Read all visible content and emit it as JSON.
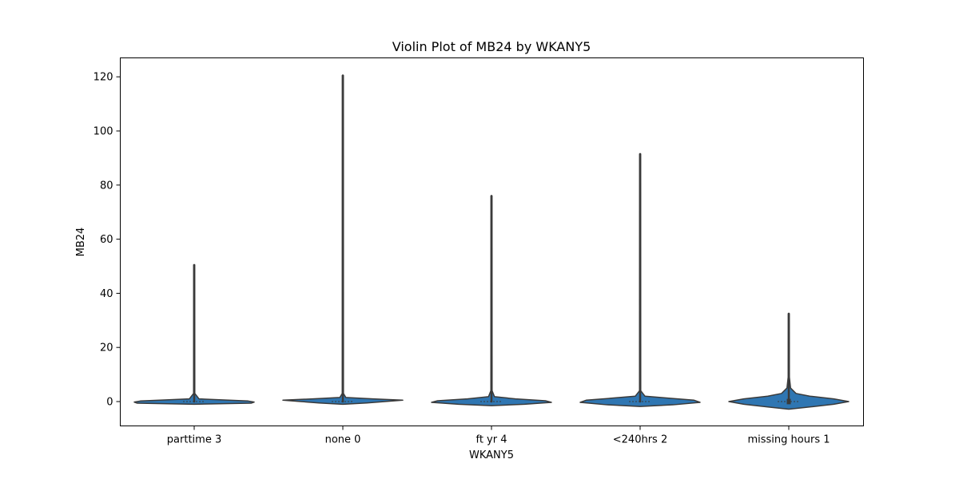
{
  "chart_data": {
    "type": "violin",
    "title": "Violin Plot of MB24 by WKANY5",
    "xlabel": "WKANY5",
    "ylabel": "MB24",
    "categories": [
      "parttime 3",
      "none 0",
      "ft yr 4",
      "<240hrs 2",
      "missing hours 1"
    ],
    "ylim": [
      -9,
      127
    ],
    "yticks": [
      0,
      20,
      40,
      60,
      80,
      100,
      120
    ],
    "grid": false,
    "colors": {
      "violin_fill": "#2f76b2",
      "outline": "#3a3a3a"
    },
    "violins": [
      {
        "category": "parttime 3",
        "max": 50.5,
        "q1": 0,
        "median": 0,
        "q3": 0,
        "density": [
          [
            -1.0,
            0.0
          ],
          [
            -0.6,
            0.95
          ],
          [
            -0.2,
            1.0
          ],
          [
            0.2,
            0.9
          ],
          [
            0.6,
            0.5
          ],
          [
            1.0,
            0.08
          ],
          [
            3,
            0.01
          ],
          [
            50.5,
            0.0
          ]
        ]
      },
      {
        "category": "none 0",
        "max": 120.5,
        "q1": 0,
        "median": 0,
        "q3": 0,
        "density": [
          [
            -1.0,
            0.0
          ],
          [
            -0.5,
            0.4
          ],
          [
            0.0,
            0.7
          ],
          [
            0.5,
            1.0
          ],
          [
            1.0,
            0.5
          ],
          [
            1.5,
            0.05
          ],
          [
            3,
            0.01
          ],
          [
            120.5,
            0.0
          ]
        ]
      },
      {
        "category": "ft yr 4",
        "max": 76,
        "q1": 0,
        "median": 0,
        "q3": 0,
        "density": [
          [
            -1.5,
            0.0
          ],
          [
            -1.0,
            0.55
          ],
          [
            -0.3,
            1.0
          ],
          [
            0.3,
            0.9
          ],
          [
            1.0,
            0.4
          ],
          [
            1.8,
            0.05
          ],
          [
            4,
            0.01
          ],
          [
            76,
            0.0
          ]
        ]
      },
      {
        "category": "<240hrs 2",
        "max": 91.5,
        "q1": 0,
        "median": 0,
        "q3": 0,
        "density": [
          [
            -1.8,
            0.0
          ],
          [
            -1.2,
            0.55
          ],
          [
            -0.3,
            1.0
          ],
          [
            0.5,
            0.9
          ],
          [
            1.2,
            0.5
          ],
          [
            2.0,
            0.08
          ],
          [
            4,
            0.01
          ],
          [
            91.5,
            0.0
          ]
        ]
      },
      {
        "category": "missing hours 1",
        "max": 32.5,
        "q1": -1,
        "median": 0,
        "q3": 1,
        "density": [
          [
            -2.8,
            0.0
          ],
          [
            -2.0,
            0.35
          ],
          [
            -1.0,
            0.75
          ],
          [
            0.0,
            1.0
          ],
          [
            1.0,
            0.75
          ],
          [
            2.0,
            0.35
          ],
          [
            3.0,
            0.12
          ],
          [
            5,
            0.03
          ],
          [
            9,
            0.01
          ],
          [
            32.5,
            0.0
          ]
        ]
      }
    ]
  }
}
